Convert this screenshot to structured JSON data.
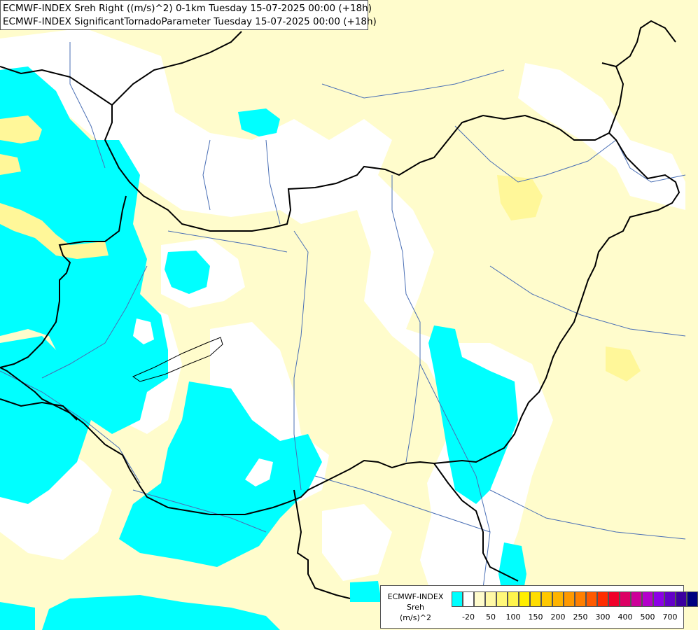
{
  "title": {
    "line1": "ECMWF-INDEX Sreh Right ((m/s)^2) 0-1km Tuesday 15-07-2025 00:00 (+18h)",
    "line2": "ECMWF-INDEX SignificantTornadoParameter Tuesday 15-07-2025 00:00 (+18h)"
  },
  "legend": {
    "name_lines": [
      "ECMWF-INDEX",
      "Sreh",
      "(m/s)^2"
    ],
    "colors": [
      "#00ffff",
      "#ffffff",
      "#fffccc",
      "#fff9a6",
      "#fff87a",
      "#fff44c",
      "#ffee00",
      "#ffdd00",
      "#ffc800",
      "#ffb400",
      "#ff9900",
      "#ff7f00",
      "#ff5a00",
      "#ff2d00",
      "#f0002a",
      "#dc0064",
      "#cc0099",
      "#b400cc",
      "#8c00e6",
      "#6400c8",
      "#3c00a0",
      "#000080"
    ],
    "tick_labels": [
      {
        "label": "-20",
        "at": 1
      },
      {
        "label": "50",
        "at": 3
      },
      {
        "label": "100",
        "at": 5
      },
      {
        "label": "150",
        "at": 7
      },
      {
        "label": "200",
        "at": 9
      },
      {
        "label": "250",
        "at": 11
      },
      {
        "label": "300",
        "at": 13
      },
      {
        "label": "400",
        "at": 15
      },
      {
        "label": "500",
        "at": 17
      },
      {
        "label": "700",
        "at": 19
      }
    ]
  },
  "map_colors": {
    "background": "#fffccc",
    "cyan": "#00ffff",
    "white": "#ffffff",
    "yellow": "#fff799",
    "border": "#000000",
    "river": "#4a6fb5"
  }
}
